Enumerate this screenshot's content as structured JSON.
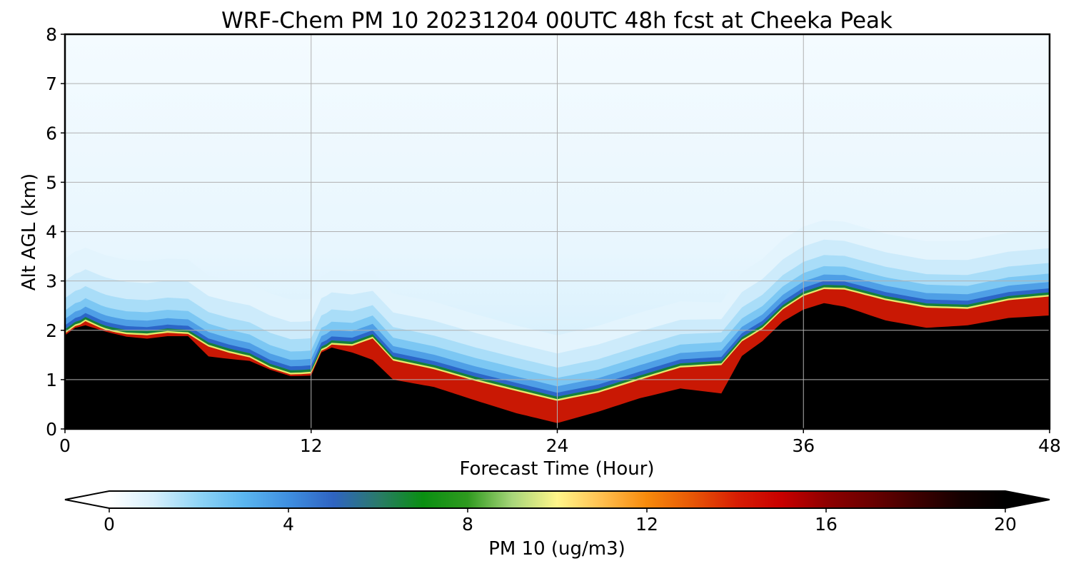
{
  "chart_data": {
    "type": "heatmap",
    "title": "WRF-Chem PM 10  20231204 00UTC 48h fcst at Cheeka Peak",
    "xlabel": "Forecast Time (Hour)",
    "ylabel": "Alt AGL (km)",
    "xlim": [
      0,
      48
    ],
    "ylim": [
      0,
      8
    ],
    "x_ticks": [
      0,
      12,
      24,
      36,
      48
    ],
    "y_ticks": [
      0,
      1,
      2,
      3,
      4,
      5,
      6,
      7,
      8
    ],
    "grid": true,
    "colorbar": {
      "label": "PM 10  (ug/m3)",
      "orientation": "horizontal",
      "placement": "bottom",
      "range": [
        0,
        20
      ],
      "ticks": [
        0,
        4,
        8,
        12,
        16,
        20
      ],
      "extend": "both",
      "colors": {
        "0": "#ffffff",
        "1": "#d6effc",
        "2": "#8fd4f6",
        "3": "#5bb6ef",
        "4": "#3f8fe0",
        "5": "#2f64c2",
        "6": "#2a7a6a",
        "7": "#0a8f12",
        "8": "#2f9a1f",
        "9": "#a8d67a",
        "10": "#fff58a",
        "11": "#ffbf4f",
        "12": "#f78a0c",
        "13": "#e85806",
        "14": "#d71e04",
        "15": "#c80000",
        "16": "#8f0000",
        "17": "#6b0000",
        "18": "#3f0000",
        "19": "#150000",
        "20": "#000000"
      }
    },
    "boundary_layer_top_km": {
      "hours": [
        0,
        0.5,
        1,
        2,
        3,
        4,
        5,
        6,
        7,
        8,
        9,
        10,
        11,
        12,
        12.5,
        13,
        14,
        15,
        16,
        18,
        20,
        22,
        24,
        26,
        28,
        30,
        32,
        33,
        34,
        35,
        36,
        37,
        38,
        40,
        42,
        44,
        46,
        48
      ],
      "values": [
        1.9,
        2.05,
        2.1,
        1.97,
        1.87,
        1.83,
        1.88,
        1.88,
        1.47,
        1.42,
        1.38,
        1.2,
        1.07,
        1.08,
        1.55,
        1.65,
        1.55,
        1.4,
        1.0,
        0.85,
        0.58,
        0.32,
        0.12,
        0.35,
        0.62,
        0.82,
        0.72,
        1.48,
        1.78,
        2.18,
        2.42,
        2.55,
        2.48,
        2.2,
        2.05,
        2.1,
        2.25,
        2.3
      ]
    },
    "inversion_peak_km": {
      "hours": [
        0,
        1,
        2,
        3,
        4,
        5,
        6,
        7,
        8,
        9,
        10,
        11,
        12,
        12.5,
        13,
        14,
        15,
        16,
        18,
        20,
        22,
        24,
        26,
        28,
        30,
        32,
        34,
        35,
        36,
        37,
        38,
        40,
        42,
        44,
        46,
        48
      ],
      "values": [
        2.15,
        2.6,
        2.35,
        2.3,
        2.3,
        2.35,
        2.3,
        2.2,
        2.0,
        1.85,
        1.6,
        1.45,
        1.5,
        1.9,
        2.1,
        2.15,
        2.6,
        2.1,
        1.9,
        1.7,
        1.55,
        1.35,
        1.45,
        1.7,
        2.0,
        2.2,
        2.6,
        3.0,
        3.3,
        3.45,
        3.5,
        3.35,
        3.2,
        3.1,
        3.3,
        3.4
      ]
    }
  }
}
